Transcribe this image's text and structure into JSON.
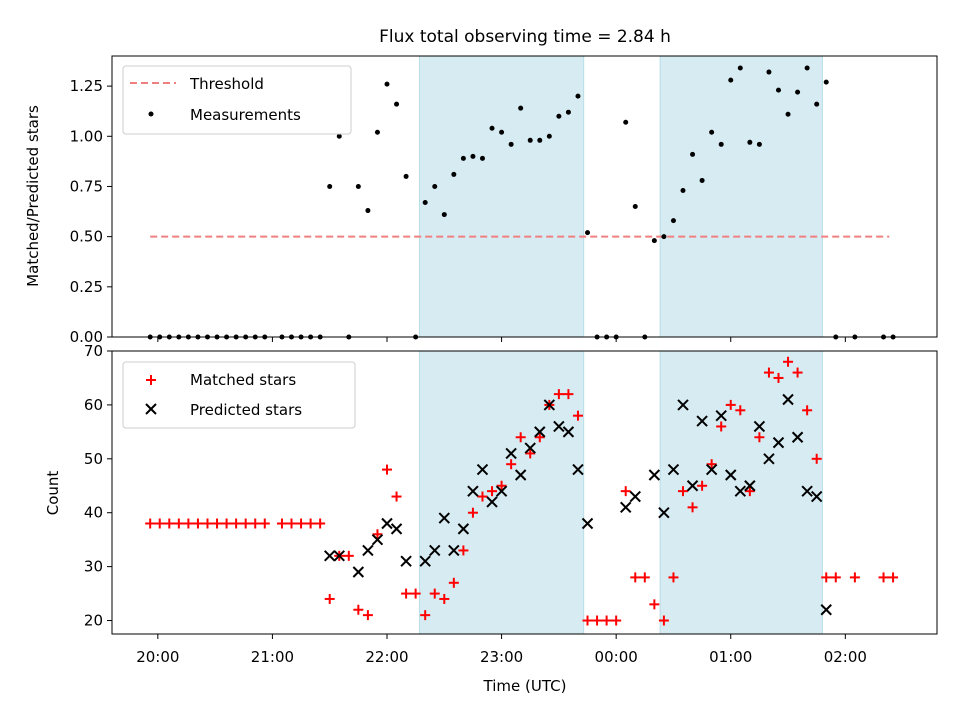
{
  "chart_data": [
    {
      "type": "scatter",
      "title": "Flux total observing time = 2.84 h",
      "xlabel": "",
      "ylabel": "Matched/Predicted stars",
      "xlim": [
        "19:36",
        "02:48"
      ],
      "ylim": [
        0,
        1.4
      ],
      "yticks": [
        0.0,
        0.25,
        0.5,
        0.75,
        1.0,
        1.25
      ],
      "ytick_labels": [
        "0.00",
        "0.25",
        "0.50",
        "0.75",
        "1.00",
        "1.25"
      ],
      "legend": {
        "position": "top-left",
        "entries": [
          "Threshold",
          "Measurements"
        ]
      },
      "threshold": {
        "name": "Threshold",
        "y": 0.5,
        "x": [
          "19:56",
          "02:23"
        ],
        "color": "#f08080",
        "style": "dashed"
      },
      "shaded_spans": [
        {
          "x": [
            "22:17",
            "23:43"
          ],
          "color": "#add8e6"
        },
        {
          "x": [
            "00:23",
            "01:48"
          ],
          "color": "#add8e6"
        }
      ],
      "series": [
        {
          "name": "Measurements",
          "color": "#000000",
          "marker": "dot",
          "points": [
            [
              "19:56",
              0
            ],
            [
              "20:01",
              0
            ],
            [
              "20:06",
              0
            ],
            [
              "20:11",
              0
            ],
            [
              "20:16",
              0
            ],
            [
              "20:21",
              0
            ],
            [
              "20:26",
              0
            ],
            [
              "20:31",
              0
            ],
            [
              "20:36",
              0
            ],
            [
              "20:41",
              0
            ],
            [
              "20:46",
              0
            ],
            [
              "20:51",
              0
            ],
            [
              "20:56",
              0
            ],
            [
              "21:05",
              0
            ],
            [
              "21:10",
              0
            ],
            [
              "21:15",
              0
            ],
            [
              "21:20",
              0
            ],
            [
              "21:25",
              0
            ],
            [
              "21:30",
              0.75
            ],
            [
              "21:35",
              1.0
            ],
            [
              "21:40",
              0
            ],
            [
              "21:45",
              0.75
            ],
            [
              "21:50",
              0.63
            ],
            [
              "21:55",
              1.02
            ],
            [
              "22:00",
              1.26
            ],
            [
              "22:05",
              1.16
            ],
            [
              "22:10",
              0.8
            ],
            [
              "22:15",
              0
            ],
            [
              "22:20",
              0.67
            ],
            [
              "22:25",
              0.75
            ],
            [
              "22:30",
              0.61
            ],
            [
              "22:35",
              0.81
            ],
            [
              "22:40",
              0.89
            ],
            [
              "22:45",
              0.9
            ],
            [
              "22:50",
              0.89
            ],
            [
              "22:55",
              1.04
            ],
            [
              "23:00",
              1.02
            ],
            [
              "23:05",
              0.96
            ],
            [
              "23:10",
              1.14
            ],
            [
              "23:15",
              0.98
            ],
            [
              "23:20",
              0.98
            ],
            [
              "23:25",
              1.0
            ],
            [
              "23:30",
              1.1
            ],
            [
              "23:35",
              1.12
            ],
            [
              "23:40",
              1.2
            ],
            [
              "23:45",
              0.52
            ],
            [
              "23:50",
              0
            ],
            [
              "23:55",
              0
            ],
            [
              "00:00",
              0
            ],
            [
              "00:05",
              1.07
            ],
            [
              "00:10",
              0.65
            ],
            [
              "00:15",
              0
            ],
            [
              "00:20",
              0.48
            ],
            [
              "00:25",
              0.5
            ],
            [
              "00:30",
              0.58
            ],
            [
              "00:35",
              0.73
            ],
            [
              "00:40",
              0.91
            ],
            [
              "00:45",
              0.78
            ],
            [
              "00:50",
              1.02
            ],
            [
              "00:55",
              0.96
            ],
            [
              "01:00",
              1.28
            ],
            [
              "01:05",
              1.34
            ],
            [
              "01:10",
              0.97
            ],
            [
              "01:15",
              0.96
            ],
            [
              "01:20",
              1.32
            ],
            [
              "01:25",
              1.23
            ],
            [
              "01:30",
              1.11
            ],
            [
              "01:35",
              1.22
            ],
            [
              "01:40",
              1.34
            ],
            [
              "01:45",
              1.16
            ],
            [
              "01:50",
              1.27
            ],
            [
              "01:55",
              0
            ],
            [
              "02:05",
              0
            ],
            [
              "02:20",
              0
            ],
            [
              "02:25",
              0
            ]
          ]
        }
      ]
    },
    {
      "type": "scatter",
      "title": "",
      "xlabel": "Time (UTC)",
      "ylabel": "Count",
      "xlim": [
        "19:36",
        "02:48"
      ],
      "ylim": [
        17.5,
        70
      ],
      "xticks": [
        "20:00",
        "21:00",
        "22:00",
        "23:00",
        "00:00",
        "01:00",
        "02:00"
      ],
      "yticks": [
        20,
        30,
        40,
        50,
        60,
        70
      ],
      "ytick_labels": [
        "20",
        "30",
        "40",
        "50",
        "60",
        "70"
      ],
      "legend": {
        "position": "top-left",
        "entries": [
          "Matched stars",
          "Predicted stars"
        ]
      },
      "shaded_spans": [
        {
          "x": [
            "22:17",
            "23:43"
          ],
          "color": "#add8e6"
        },
        {
          "x": [
            "00:23",
            "01:48"
          ],
          "color": "#add8e6"
        }
      ],
      "series": [
        {
          "name": "Matched stars",
          "color": "#ff0000",
          "marker": "plus",
          "points": [
            [
              "19:56",
              38
            ],
            [
              "20:01",
              38
            ],
            [
              "20:06",
              38
            ],
            [
              "20:11",
              38
            ],
            [
              "20:16",
              38
            ],
            [
              "20:21",
              38
            ],
            [
              "20:26",
              38
            ],
            [
              "20:31",
              38
            ],
            [
              "20:36",
              38
            ],
            [
              "20:41",
              38
            ],
            [
              "20:46",
              38
            ],
            [
              "20:51",
              38
            ],
            [
              "20:56",
              38
            ],
            [
              "21:05",
              38
            ],
            [
              "21:10",
              38
            ],
            [
              "21:15",
              38
            ],
            [
              "21:20",
              38
            ],
            [
              "21:25",
              38
            ],
            [
              "21:30",
              24
            ],
            [
              "21:35",
              32
            ],
            [
              "21:40",
              32
            ],
            [
              "21:45",
              22
            ],
            [
              "21:50",
              21
            ],
            [
              "21:55",
              36
            ],
            [
              "22:00",
              48
            ],
            [
              "22:05",
              43
            ],
            [
              "22:10",
              25
            ],
            [
              "22:15",
              25
            ],
            [
              "22:20",
              21
            ],
            [
              "22:25",
              25
            ],
            [
              "22:30",
              24
            ],
            [
              "22:35",
              27
            ],
            [
              "22:40",
              33
            ],
            [
              "22:45",
              40
            ],
            [
              "22:50",
              43
            ],
            [
              "22:55",
              44
            ],
            [
              "23:00",
              45
            ],
            [
              "23:05",
              49
            ],
            [
              "23:10",
              54
            ],
            [
              "23:15",
              51
            ],
            [
              "23:20",
              54
            ],
            [
              "23:25",
              60
            ],
            [
              "23:30",
              62
            ],
            [
              "23:35",
              62
            ],
            [
              "23:40",
              58
            ],
            [
              "23:45",
              20
            ],
            [
              "23:50",
              20
            ],
            [
              "23:55",
              20
            ],
            [
              "00:00",
              20
            ],
            [
              "00:05",
              44
            ],
            [
              "00:10",
              28
            ],
            [
              "00:15",
              28
            ],
            [
              "00:20",
              23
            ],
            [
              "00:25",
              20
            ],
            [
              "00:30",
              28
            ],
            [
              "00:35",
              44
            ],
            [
              "00:40",
              41
            ],
            [
              "00:45",
              45
            ],
            [
              "00:50",
              49
            ],
            [
              "00:55",
              56
            ],
            [
              "01:00",
              60
            ],
            [
              "01:05",
              59
            ],
            [
              "01:10",
              44
            ],
            [
              "01:15",
              54
            ],
            [
              "01:20",
              66
            ],
            [
              "01:25",
              65
            ],
            [
              "01:30",
              68
            ],
            [
              "01:35",
              66
            ],
            [
              "01:40",
              59
            ],
            [
              "01:45",
              50
            ],
            [
              "01:50",
              28
            ],
            [
              "01:55",
              28
            ],
            [
              "02:05",
              28
            ],
            [
              "02:20",
              28
            ],
            [
              "02:25",
              28
            ]
          ]
        },
        {
          "name": "Predicted stars",
          "color": "#000000",
          "marker": "x",
          "points": [
            [
              "21:30",
              32
            ],
            [
              "21:35",
              32
            ],
            [
              "21:45",
              29
            ],
            [
              "21:50",
              33
            ],
            [
              "21:55",
              35
            ],
            [
              "22:00",
              38
            ],
            [
              "22:05",
              37
            ],
            [
              "22:10",
              31
            ],
            [
              "22:20",
              31
            ],
            [
              "22:25",
              33
            ],
            [
              "22:30",
              39
            ],
            [
              "22:35",
              33
            ],
            [
              "22:40",
              37
            ],
            [
              "22:45",
              44
            ],
            [
              "22:50",
              48
            ],
            [
              "22:55",
              42
            ],
            [
              "23:00",
              44
            ],
            [
              "23:05",
              51
            ],
            [
              "23:10",
              47
            ],
            [
              "23:15",
              52
            ],
            [
              "23:20",
              55
            ],
            [
              "23:25",
              60
            ],
            [
              "23:30",
              56
            ],
            [
              "23:35",
              55
            ],
            [
              "23:40",
              48
            ],
            [
              "23:45",
              38
            ],
            [
              "00:05",
              41
            ],
            [
              "00:10",
              43
            ],
            [
              "00:20",
              47
            ],
            [
              "00:25",
              40
            ],
            [
              "00:30",
              48
            ],
            [
              "00:35",
              60
            ],
            [
              "00:40",
              45
            ],
            [
              "00:45",
              57
            ],
            [
              "00:50",
              48
            ],
            [
              "00:55",
              58
            ],
            [
              "01:00",
              47
            ],
            [
              "01:05",
              44
            ],
            [
              "01:10",
              45
            ],
            [
              "01:15",
              56
            ],
            [
              "01:20",
              50
            ],
            [
              "01:25",
              53
            ],
            [
              "01:30",
              61
            ],
            [
              "01:35",
              54
            ],
            [
              "01:40",
              44
            ],
            [
              "01:45",
              43
            ],
            [
              "01:50",
              22
            ]
          ]
        }
      ]
    }
  ]
}
